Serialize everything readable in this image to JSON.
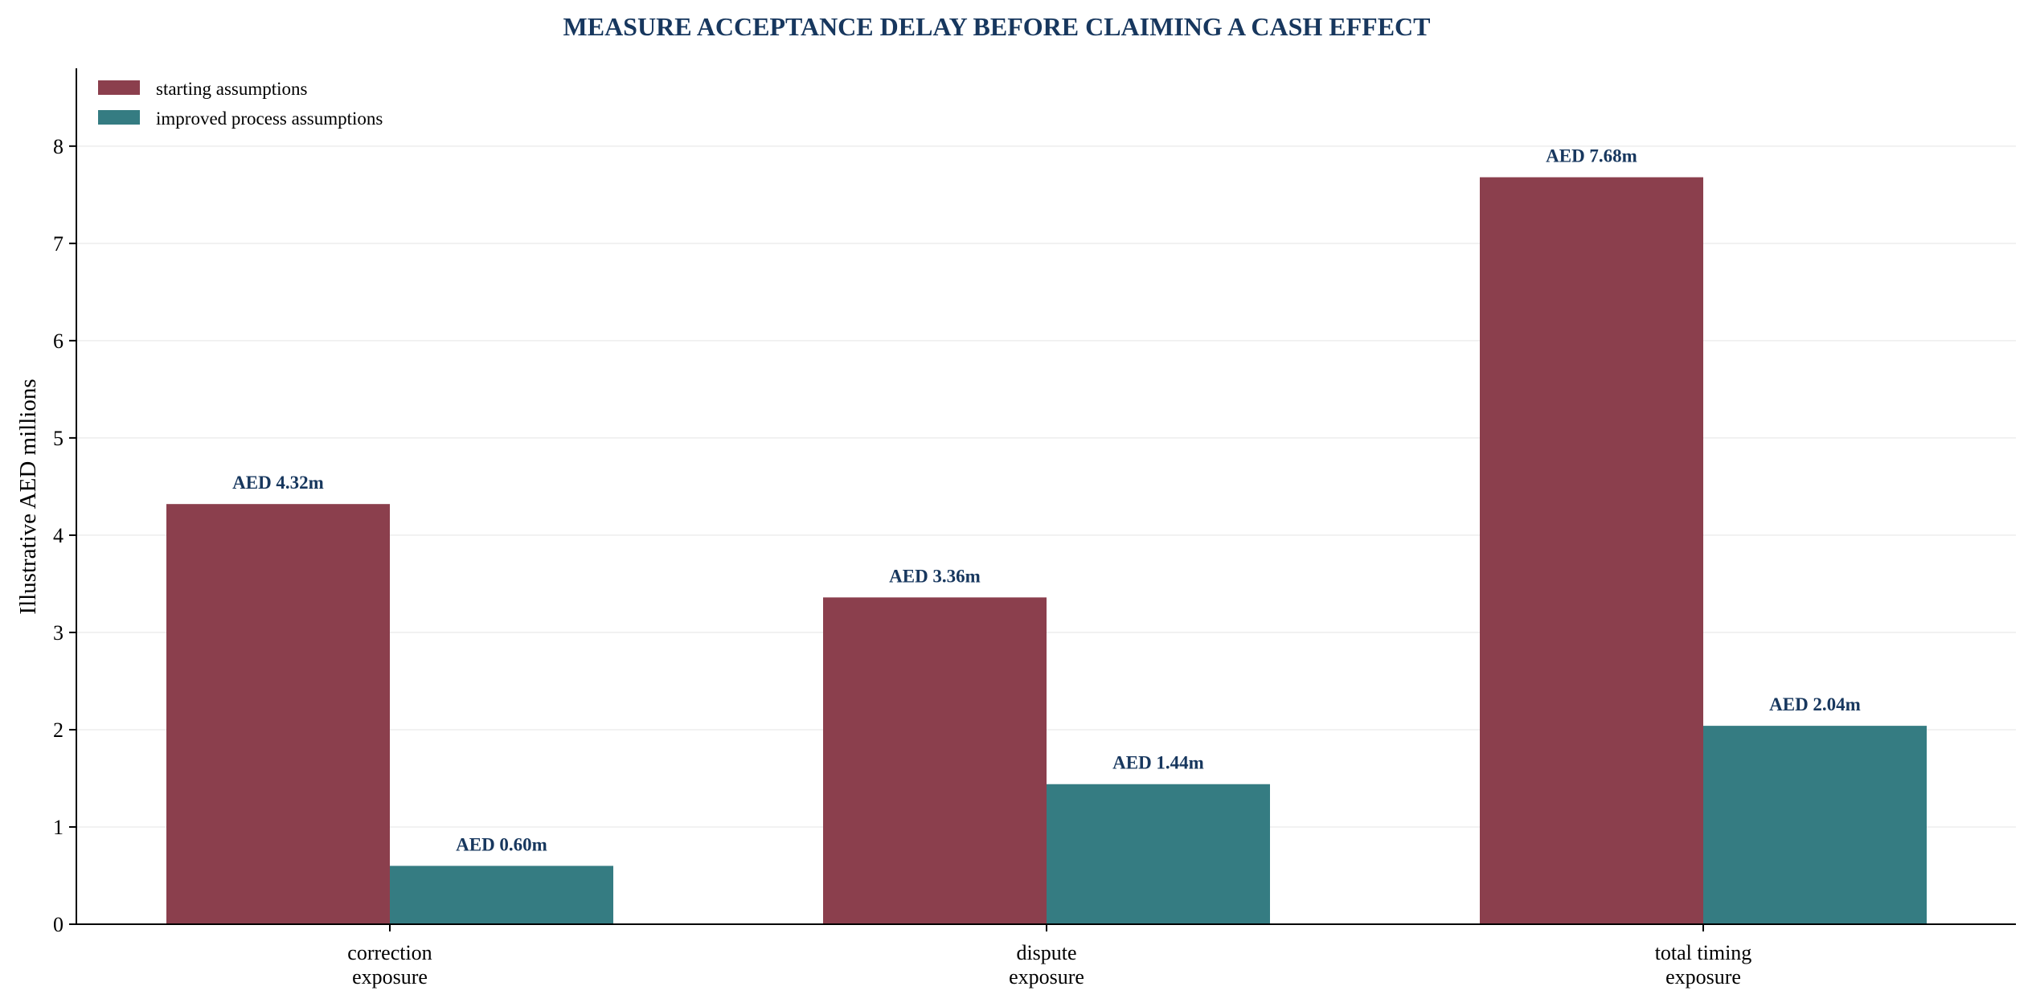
{
  "chart_data": {
    "type": "bar",
    "title": "MEASURE ACCEPTANCE DELAY BEFORE CLAIMING A CASH EFFECT",
    "xlabel": "",
    "ylabel": "Illustrative AED millions",
    "ylim": [
      0,
      8.8
    ],
    "yticks": [
      0,
      1,
      2,
      3,
      4,
      5,
      6,
      7,
      8
    ],
    "grid": "horizontal",
    "legend_position": "top-left",
    "categories": [
      [
        "correction",
        "exposure"
      ],
      [
        "dispute",
        "exposure"
      ],
      [
        "total timing",
        "exposure"
      ]
    ],
    "series": [
      {
        "name": "starting assumptions",
        "color": "#8b3f4d",
        "values": [
          4.32,
          3.36,
          7.68
        ],
        "labels": [
          "AED 4.32m",
          "AED 3.36m",
          "AED 7.68m"
        ]
      },
      {
        "name": "improved process assumptions",
        "color": "#357c82",
        "values": [
          0.6,
          1.44,
          2.04
        ],
        "labels": [
          "AED 0.60m",
          "AED 1.44m",
          "AED 2.04m"
        ]
      }
    ]
  }
}
